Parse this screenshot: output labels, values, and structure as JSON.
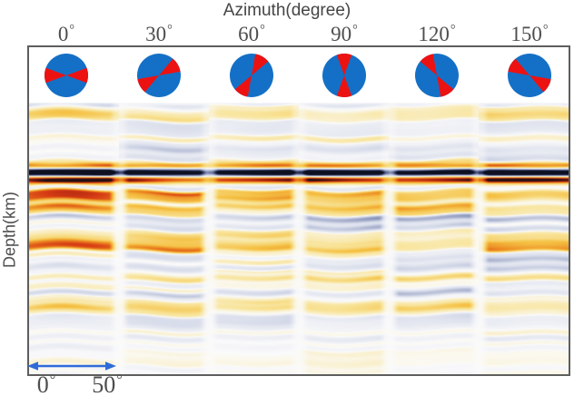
{
  "title": "Azimuth(degree)",
  "ylabel": "Depth(km)",
  "degree_symbol": "°",
  "azimuth_ticks": [
    {
      "num": "0"
    },
    {
      "num": "30"
    },
    {
      "num": "60"
    },
    {
      "num": "90"
    },
    {
      "num": "120"
    },
    {
      "num": "150"
    }
  ],
  "scale_bar": {
    "start_num": "0",
    "end_num": "50"
  },
  "colors": {
    "beachball_blue": "#1470c6",
    "beachball_red": "#ec1212",
    "arrow_blue": "#2f6bd7",
    "frame_border": "#5e5e5e",
    "title_text": "#454545",
    "tick_text": "#4e4e4e"
  },
  "chart_data": {
    "type": "heatmap",
    "title": "Azimuth(degree)",
    "xlabel": "Azimuth(degree)",
    "ylabel": "Depth(km)",
    "x_tick_labels": [
      "0°",
      "30°",
      "60°",
      "90°",
      "120°",
      "150°"
    ],
    "y_tick_labels": [],
    "legend": "none",
    "panels": [
      {
        "azimuth_deg": 0
      },
      {
        "azimuth_deg": 30
      },
      {
        "azimuth_deg": 60
      },
      {
        "azimuth_deg": 90
      },
      {
        "azimuth_deg": 120
      },
      {
        "azimuth_deg": 150
      }
    ],
    "beachballs": {
      "style": "blue disk with two opposite red bowtie wedges meeting at center; wedge axis rotated counterclockwise by the panel azimuth",
      "wedge_half_angle_deg": 20
    },
    "scale_arrow": {
      "from_label": "0°",
      "to_label": "50°",
      "description": "blue double-headed arrow at bottom left spanning one azimuth gather width"
    },
    "seismic_image": {
      "description": "six azimuth gathers of receiver-function style traces vs depth; horizontal wavy bands, warm colors (yellow/orange/red) positive, slate/navy/black negative, white gaps between gathers; strongest continuous black+red event near 1/4 of section depth, strong banding to ~3/4 depth, faint above and below",
      "panel_count": 6,
      "strong_event_depth_frac": 0.256,
      "strong_zone_depth_frac": [
        0.24,
        0.76
      ],
      "envelope": [
        [
          0,
          0.06
        ],
        [
          0.013,
          0.42
        ],
        [
          0.043,
          0.45
        ],
        [
          0.074,
          0.28
        ],
        [
          0.127,
          0.33
        ],
        [
          0.207,
          0.38
        ],
        [
          0.234,
          0.5
        ],
        [
          0.247,
          1.0
        ],
        [
          0.294,
          0.92
        ],
        [
          0.395,
          0.8
        ],
        [
          0.468,
          0.72
        ],
        [
          0.535,
          0.8
        ],
        [
          0.635,
          0.76
        ],
        [
          0.742,
          0.7
        ],
        [
          0.769,
          0.45
        ],
        [
          0.803,
          0.26
        ],
        [
          0.876,
          0.2
        ],
        [
          1,
          0.15
        ]
      ],
      "palette_positive_stops": [
        0,
        0.2,
        0.4,
        0.58,
        0.74,
        0.87,
        1
      ],
      "palette_positive": [
        "#fbfaf7",
        "#f8e49a",
        "#f5c144",
        "#ec8822",
        "#d63b14",
        "#8f1a10",
        "#201012"
      ],
      "palette_negative_stops": [
        0,
        0.25,
        0.5,
        0.7,
        0.85,
        1
      ],
      "palette_negative": [
        "#fafafb",
        "#d5dae9",
        "#939dc0",
        "#525c86",
        "#272d52",
        "#0d1020"
      ]
    }
  }
}
